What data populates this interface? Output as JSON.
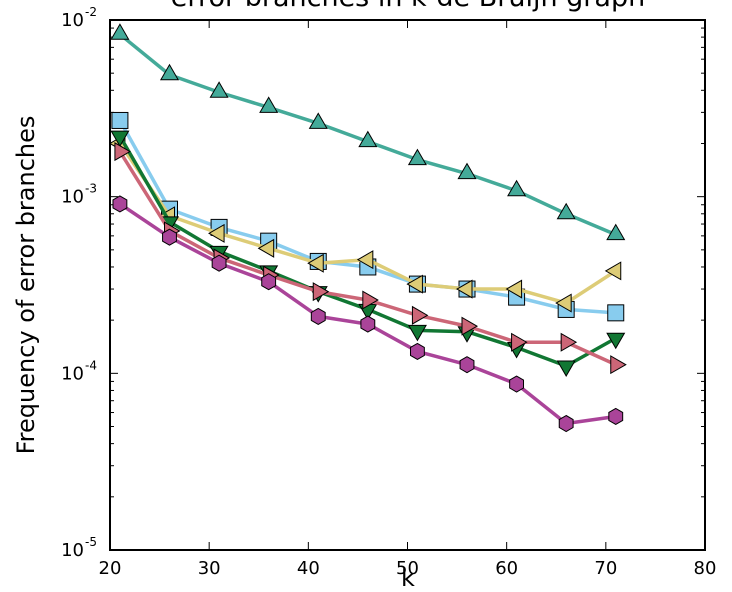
{
  "chart_data": {
    "type": "line",
    "title": "error branches in k-de Bruijn graph",
    "xlabel": "k",
    "ylabel": "Frequency of error branches",
    "xlim": [
      20,
      80
    ],
    "ylim": [
      1e-05,
      0.01
    ],
    "yscale": "log",
    "xticks": [
      20,
      30,
      40,
      50,
      60,
      70,
      80
    ],
    "yticks": [
      {
        "base": "10",
        "exp": "-5",
        "value": 1e-05
      },
      {
        "base": "10",
        "exp": "-4",
        "value": 0.0001
      },
      {
        "base": "10",
        "exp": "-3",
        "value": 0.001
      },
      {
        "base": "10",
        "exp": "-2",
        "value": 0.01
      }
    ],
    "grid": false,
    "series": [
      {
        "marker": "triangle-up",
        "color": "#44aa99",
        "x": [
          21,
          26,
          31,
          36,
          41,
          46,
          51,
          56,
          61,
          66,
          71
        ],
        "y": [
          0.0083,
          0.0049,
          0.0039,
          0.0032,
          0.0026,
          0.00205,
          0.00162,
          0.00135,
          0.00108,
          0.0008,
          0.00061
        ]
      },
      {
        "marker": "square",
        "color": "#88ccee",
        "x": [
          21,
          26,
          31,
          36,
          41,
          46,
          51,
          56,
          61,
          66,
          71
        ],
        "y": [
          0.0027,
          0.00085,
          0.00067,
          0.00056,
          0.00043,
          0.0004,
          0.00032,
          0.0003,
          0.00027,
          0.00023,
          0.00022
        ]
      },
      {
        "marker": "triangle-left",
        "color": "#ddcc77",
        "x": [
          21,
          26,
          31,
          36,
          41,
          46,
          51,
          56,
          61,
          66,
          71
        ],
        "y": [
          0.002,
          0.00078,
          0.00062,
          0.00051,
          0.00042,
          0.00044,
          0.00032,
          0.0003,
          0.0003,
          0.00025,
          0.00038
        ]
      },
      {
        "marker": "triangle-down",
        "color": "#117733",
        "x": [
          21,
          26,
          31,
          36,
          41,
          46,
          51,
          56,
          61,
          66,
          71
        ],
        "y": [
          0.0022,
          0.00072,
          0.00049,
          0.00038,
          0.00029,
          0.00023,
          0.000175,
          0.000172,
          0.00014,
          0.00011,
          0.000158
        ]
      },
      {
        "marker": "triangle-right",
        "color": "#cc6677",
        "x": [
          21,
          26,
          31,
          36,
          41,
          46,
          51,
          56,
          61,
          66,
          71
        ],
        "y": [
          0.0018,
          0.00064,
          0.00045,
          0.00036,
          0.00029,
          0.00026,
          0.000213,
          0.000185,
          0.00015,
          0.00015,
          0.000112
        ]
      },
      {
        "marker": "hexagon",
        "color": "#aa4499",
        "x": [
          21,
          26,
          31,
          36,
          41,
          46,
          51,
          56,
          61,
          66,
          71
        ],
        "y": [
          0.00091,
          0.00059,
          0.00042,
          0.00033,
          0.00021,
          0.00019,
          0.000133,
          0.000112,
          8.7e-05,
          5.2e-05,
          5.7e-05
        ]
      }
    ]
  }
}
